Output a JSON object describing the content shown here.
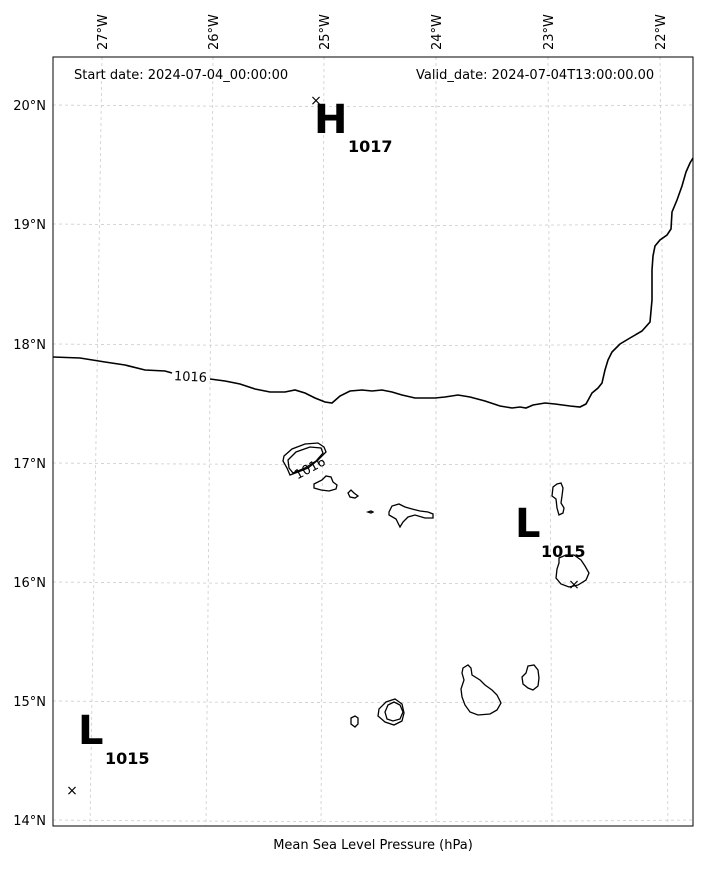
{
  "header": {
    "start_date": "Start date: 2024-07-04_00:00:00",
    "valid_date": "Valid_date: 2024-07-04T13:00:00.00"
  },
  "xlabel": "Mean Sea Level Pressure (hPa)",
  "lon_ticks": [
    "27°W",
    "26°W",
    "25°W",
    "24°W",
    "23°W",
    "22°W"
  ],
  "lat_ticks": [
    "20°N",
    "19°N",
    "18°N",
    "17°N",
    "16°N",
    "15°N",
    "14°N"
  ],
  "isobar_labels": [
    "1016",
    "1016"
  ],
  "pressure_centers": [
    {
      "type": "H",
      "value": "1017",
      "lon": -25.05,
      "lat": 20.05
    },
    {
      "type": "L",
      "value": "1015",
      "lon": -22.8,
      "lat": 15.98
    },
    {
      "type": "L",
      "value": "1015",
      "lon": -27.2,
      "lat": 14.25
    }
  ],
  "colors": {
    "isobar": "#000000",
    "coast": "#000000",
    "grid": "#cccccc"
  }
}
